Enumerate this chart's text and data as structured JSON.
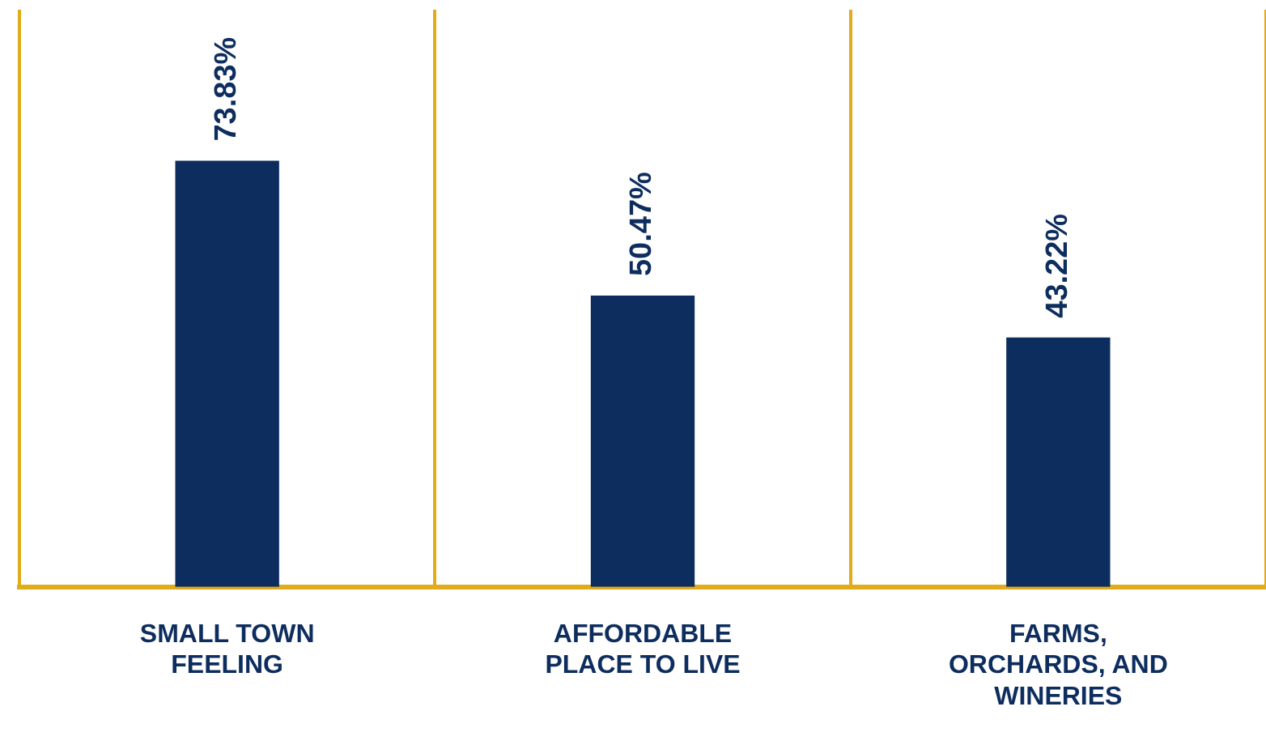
{
  "chart_data": {
    "type": "bar",
    "categories": [
      "SMALL TOWN FEELING",
      "AFFORDABLE PLACE TO LIVE",
      "FARMS, ORCHARDS, AND WINERIES"
    ],
    "values": [
      73.83,
      50.47,
      43.22
    ],
    "value_labels": [
      "73.83%",
      "50.47%",
      "43.22%"
    ],
    "color": "#0d2d5e",
    "ylim": [
      0,
      100
    ],
    "grid": "x",
    "tick_labels": "x",
    "legend": false
  }
}
